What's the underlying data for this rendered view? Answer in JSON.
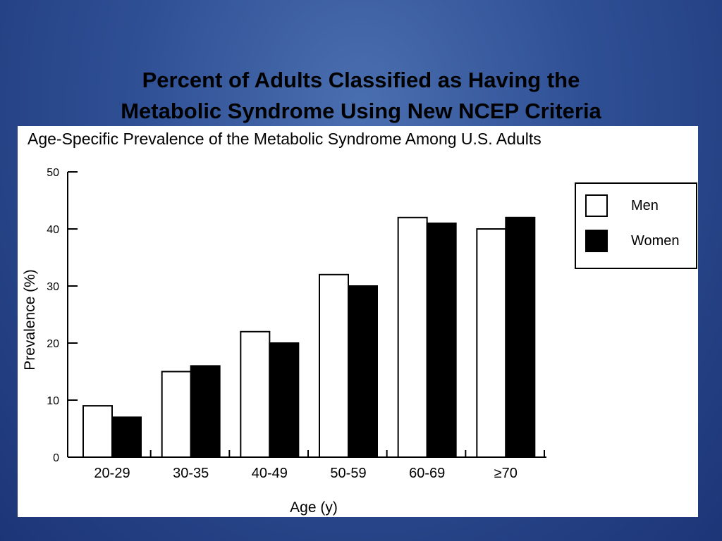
{
  "slide": {
    "title_line1": "Percent of Adults Classified as Having the",
    "title_line2": "Metabolic Syndrome Using New NCEP Criteria"
  },
  "chart_data": {
    "type": "bar",
    "title": "Age-Specific Prevalence of the Metabolic Syndrome Among U.S. Adults",
    "xlabel": "Age (y)",
    "ylabel": "Prevalence (%)",
    "categories": [
      "20-29",
      "30-35",
      "40-49",
      "50-59",
      "60-69",
      "≥70"
    ],
    "series": [
      {
        "name": "Men",
        "color": "#ffffff",
        "values": [
          9,
          15,
          22,
          32,
          42,
          40
        ]
      },
      {
        "name": "Women",
        "color": "#000000",
        "values": [
          7,
          16,
          20,
          30,
          41,
          42
        ]
      }
    ],
    "ylim": [
      0,
      50
    ],
    "yticks": [
      0,
      10,
      20,
      30,
      40,
      50
    ],
    "grid": false,
    "legend": "top-right"
  },
  "colors": {
    "background": "#2f4f94",
    "panel": "#ffffff"
  }
}
